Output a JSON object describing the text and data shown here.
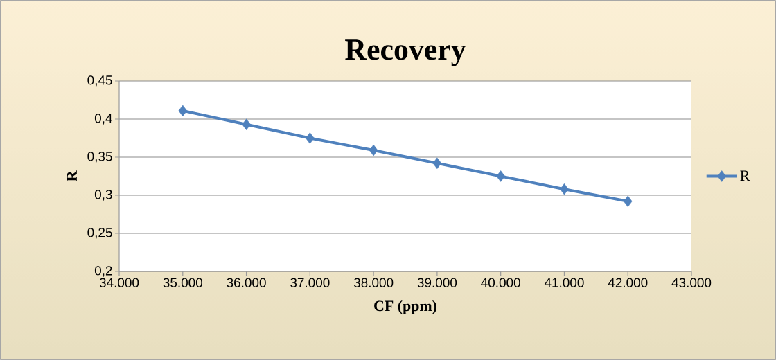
{
  "chart_data": {
    "type": "line",
    "title": "Recovery",
    "xlabel": "CF (ppm)",
    "ylabel": "R",
    "x": [
      35000,
      36000,
      37000,
      38000,
      39000,
      40000,
      41000,
      42000
    ],
    "series": [
      {
        "name": "R",
        "color": "#4f81bd",
        "values": [
          0.411,
          0.393,
          0.375,
          0.359,
          0.342,
          0.325,
          0.308,
          0.292
        ]
      }
    ],
    "xlim": [
      34000,
      43000
    ],
    "xticks": [
      {
        "value": 34000,
        "label": "34.000"
      },
      {
        "value": 35000,
        "label": "35.000"
      },
      {
        "value": 36000,
        "label": "36.000"
      },
      {
        "value": 37000,
        "label": "37.000"
      },
      {
        "value": 38000,
        "label": "38.000"
      },
      {
        "value": 39000,
        "label": "39.000"
      },
      {
        "value": 40000,
        "label": "40.000"
      },
      {
        "value": 41000,
        "label": "41.000"
      },
      {
        "value": 42000,
        "label": "42.000"
      },
      {
        "value": 43000,
        "label": "43.000"
      }
    ],
    "ylim": [
      0.2,
      0.45
    ],
    "yticks": [
      {
        "value": 0.2,
        "label": "0,2"
      },
      {
        "value": 0.25,
        "label": "0,25"
      },
      {
        "value": 0.3,
        "label": "0,3"
      },
      {
        "value": 0.35,
        "label": "0,35"
      },
      {
        "value": 0.4,
        "label": "0,4"
      },
      {
        "value": 0.45,
        "label": "0,45"
      }
    ],
    "grid": "y",
    "legend": "right",
    "marker": "diamond",
    "line_style": "solid"
  }
}
